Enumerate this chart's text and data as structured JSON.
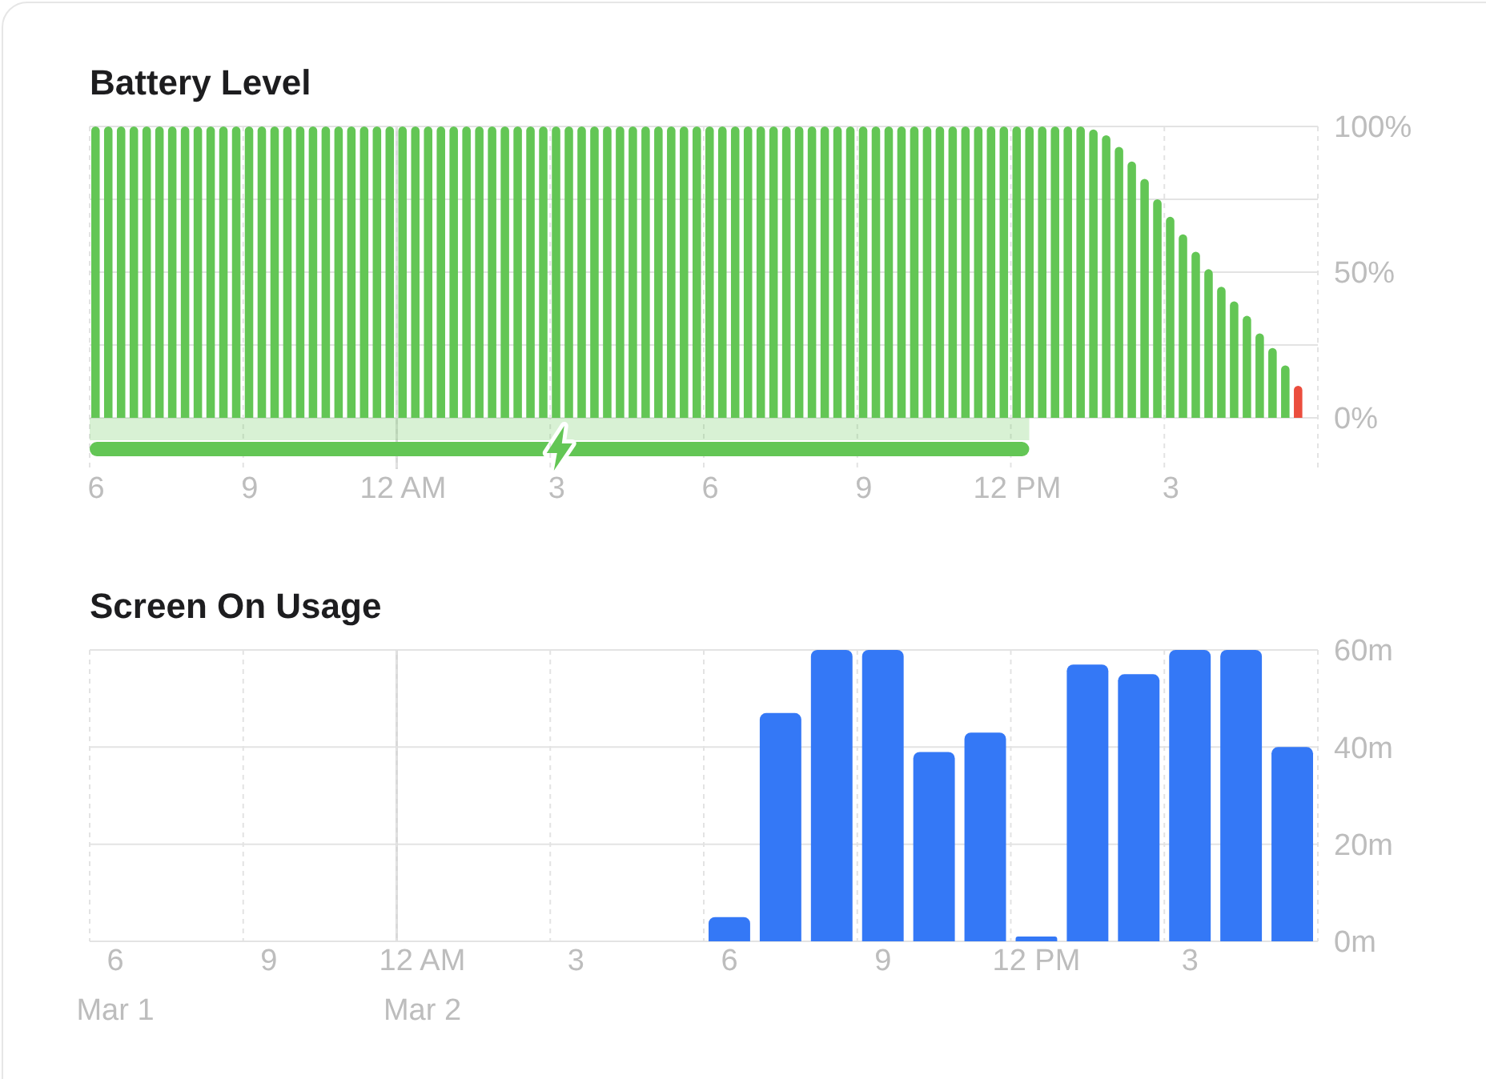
{
  "chart_data": [
    {
      "type": "bar",
      "title": "Battery Level",
      "categories": [
        "6",
        null,
        null,
        null,
        null,
        null,
        null,
        null,
        null,
        null,
        null,
        null,
        "9",
        null,
        null,
        null,
        null,
        null,
        null,
        null,
        null,
        null,
        null,
        null,
        "12 AM",
        null,
        null,
        null,
        null,
        null,
        null,
        null,
        null,
        null,
        null,
        null,
        "3",
        null,
        null,
        null,
        null,
        null,
        null,
        null,
        null,
        null,
        null,
        null,
        "6",
        null,
        null,
        null,
        null,
        null,
        null,
        null,
        null,
        null,
        null,
        null,
        "9",
        null,
        null,
        null,
        null,
        null,
        null,
        null,
        null,
        null,
        null,
        null,
        "12 PM",
        null,
        null,
        null,
        null,
        null,
        null,
        null,
        null,
        null,
        null,
        null,
        "3",
        null,
        null,
        null,
        null,
        null,
        null,
        null,
        null,
        null,
        null,
        null
      ],
      "values": [
        100,
        100,
        100,
        100,
        100,
        100,
        100,
        100,
        100,
        100,
        100,
        100,
        100,
        100,
        100,
        100,
        100,
        100,
        100,
        100,
        100,
        100,
        100,
        100,
        100,
        100,
        100,
        100,
        100,
        100,
        100,
        100,
        100,
        100,
        100,
        100,
        100,
        100,
        100,
        100,
        100,
        100,
        100,
        100,
        100,
        100,
        100,
        100,
        100,
        100,
        100,
        100,
        100,
        100,
        100,
        100,
        100,
        100,
        100,
        100,
        100,
        100,
        100,
        100,
        100,
        100,
        100,
        100,
        100,
        100,
        100,
        100,
        100,
        100,
        100,
        100,
        100,
        100,
        99,
        97,
        93,
        88,
        82,
        75,
        69,
        63,
        57,
        51,
        45,
        40,
        35,
        29,
        24,
        18,
        11,
        null
      ],
      "colors": [
        "#63c655",
        "#63c655",
        "#63c655",
        "#63c655",
        "#63c655",
        "#63c655",
        "#63c655",
        "#63c655",
        "#63c655",
        "#63c655",
        "#63c655",
        "#63c655",
        "#63c655",
        "#63c655",
        "#63c655",
        "#63c655",
        "#63c655",
        "#63c655",
        "#63c655",
        "#63c655",
        "#63c655",
        "#63c655",
        "#63c655",
        "#63c655",
        "#63c655",
        "#63c655",
        "#63c655",
        "#63c655",
        "#63c655",
        "#63c655",
        "#63c655",
        "#63c655",
        "#63c655",
        "#63c655",
        "#63c655",
        "#63c655",
        "#63c655",
        "#63c655",
        "#63c655",
        "#63c655",
        "#63c655",
        "#63c655",
        "#63c655",
        "#63c655",
        "#63c655",
        "#63c655",
        "#63c655",
        "#63c655",
        "#63c655",
        "#63c655",
        "#63c655",
        "#63c655",
        "#63c655",
        "#63c655",
        "#63c655",
        "#63c655",
        "#63c655",
        "#63c655",
        "#63c655",
        "#63c655",
        "#63c655",
        "#63c655",
        "#63c655",
        "#63c655",
        "#63c655",
        "#63c655",
        "#63c655",
        "#63c655",
        "#63c655",
        "#63c655",
        "#63c655",
        "#63c655",
        "#63c655",
        "#63c655",
        "#63c655",
        "#63c655",
        "#63c655",
        "#63c655",
        "#63c655",
        "#63c655",
        "#63c655",
        "#63c655",
        "#63c655",
        "#63c655",
        "#63c655",
        "#63c655",
        "#63c655",
        "#63c655",
        "#63c655",
        "#63c655",
        "#63c655",
        "#63c655",
        "#63c655",
        "#63c655",
        "#eb4d3d",
        null
      ],
      "ylim": [
        0,
        100
      ],
      "yticks": [
        {
          "value": 0,
          "label": "0%"
        },
        {
          "value": 25,
          "label": null
        },
        {
          "value": 50,
          "label": "50%"
        },
        {
          "value": 75,
          "label": null
        },
        {
          "value": 100,
          "label": "100%"
        }
      ],
      "grid": true,
      "ref_lines": [
        {
          "axis": "x",
          "value": "12 AM",
          "line_style": "solid",
          "color": "#d9d9d9"
        }
      ]
    },
    {
      "type": "bar",
      "title": "Screen On Usage",
      "categories": [
        "6\nMar 1",
        null,
        null,
        "9",
        null,
        null,
        "12 AM\nMar 2",
        null,
        null,
        "3",
        null,
        null,
        "6",
        null,
        null,
        "9",
        null,
        null,
        "12 PM",
        null,
        null,
        "3",
        null,
        null
      ],
      "values": [
        0,
        0,
        0,
        0,
        0,
        0,
        0,
        0,
        0,
        0,
        0,
        0,
        5,
        47,
        60,
        60,
        39,
        43,
        1,
        57,
        55,
        60,
        60,
        40
      ],
      "color": "#3478f6",
      "ylim": [
        0,
        60
      ],
      "yticks": [
        {
          "value": 0,
          "label": "0m"
        },
        {
          "value": 20,
          "label": "20m"
        },
        {
          "value": 40,
          "label": "40m"
        },
        {
          "value": 60,
          "label": "60m"
        }
      ],
      "grid": true,
      "ref_lines": [
        {
          "axis": "x",
          "value": "12 AM\nMar 2",
          "line_style": "solid",
          "color": "#d9d9d9"
        }
      ]
    }
  ]
}
